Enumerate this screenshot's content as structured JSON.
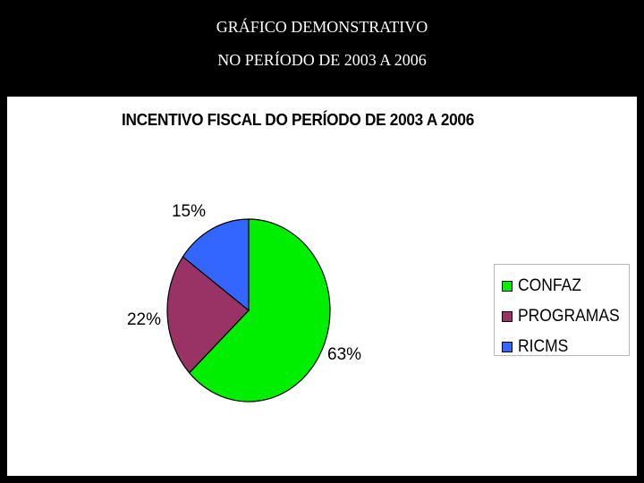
{
  "header": {
    "line1": "GRÁFICO DEMONSTRATIVO",
    "line2": "NO PERÍODO DE 2003 A 2006"
  },
  "chart_data": {
    "type": "pie",
    "title": "INCENTIVO FISCAL DO PERÍODO DE 2003 A 2006",
    "categories": [
      "CONFAZ",
      "PROGRAMAS",
      "RICMS"
    ],
    "values": [
      63,
      22,
      15
    ],
    "data_labels": [
      "63%",
      "22%",
      "15%"
    ],
    "colors": [
      "#00ee00",
      "#993366",
      "#3366ff"
    ],
    "legend_position": "right"
  }
}
